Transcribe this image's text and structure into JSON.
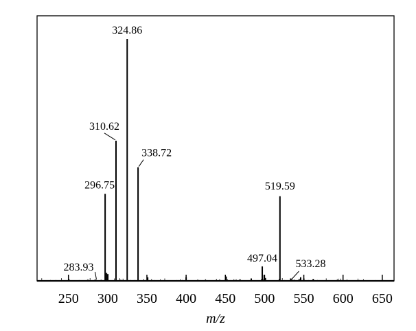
{
  "chart_data": {
    "type": "bar",
    "title": "",
    "xlabel": "m/z",
    "ylabel": "",
    "xlim": [
      210,
      665
    ],
    "ylim": [
      0,
      100
    ],
    "grid": false,
    "x_ticks": [
      250,
      300,
      350,
      400,
      450,
      500,
      550,
      600,
      650
    ],
    "labeled_peaks": [
      {
        "mz": 283.93,
        "label": "283.93",
        "intensity": 0.5
      },
      {
        "mz": 296.75,
        "label": "296.75",
        "intensity": 36
      },
      {
        "mz": 310.62,
        "label": "310.62",
        "intensity": 58
      },
      {
        "mz": 324.86,
        "label": "324.86",
        "intensity": 100
      },
      {
        "mz": 338.72,
        "label": "338.72",
        "intensity": 47
      },
      {
        "mz": 497.04,
        "label": "497.04",
        "intensity": 6
      },
      {
        "mz": 519.59,
        "label": "519.59",
        "intensity": 35
      },
      {
        "mz": 533.28,
        "label": "533.28",
        "intensity": 1
      }
    ],
    "minor_peaks": [
      {
        "mz": 298.5,
        "intensity": 3.3
      },
      {
        "mz": 300.2,
        "intensity": 2.8
      },
      {
        "mz": 351.0,
        "intensity": 1.5
      },
      {
        "mz": 400.0,
        "intensity": 1.5
      },
      {
        "mz": 451.0,
        "intensity": 1.8
      },
      {
        "mz": 483.0,
        "intensity": 1.0
      },
      {
        "mz": 499.5,
        "intensity": 2.5
      },
      {
        "mz": 501.0,
        "intensity": 1.2
      },
      {
        "mz": 546.0,
        "intensity": 1.5
      },
      {
        "mz": 550.0,
        "intensity": 1.0
      },
      {
        "mz": 562.0,
        "intensity": 0.8
      }
    ]
  }
}
